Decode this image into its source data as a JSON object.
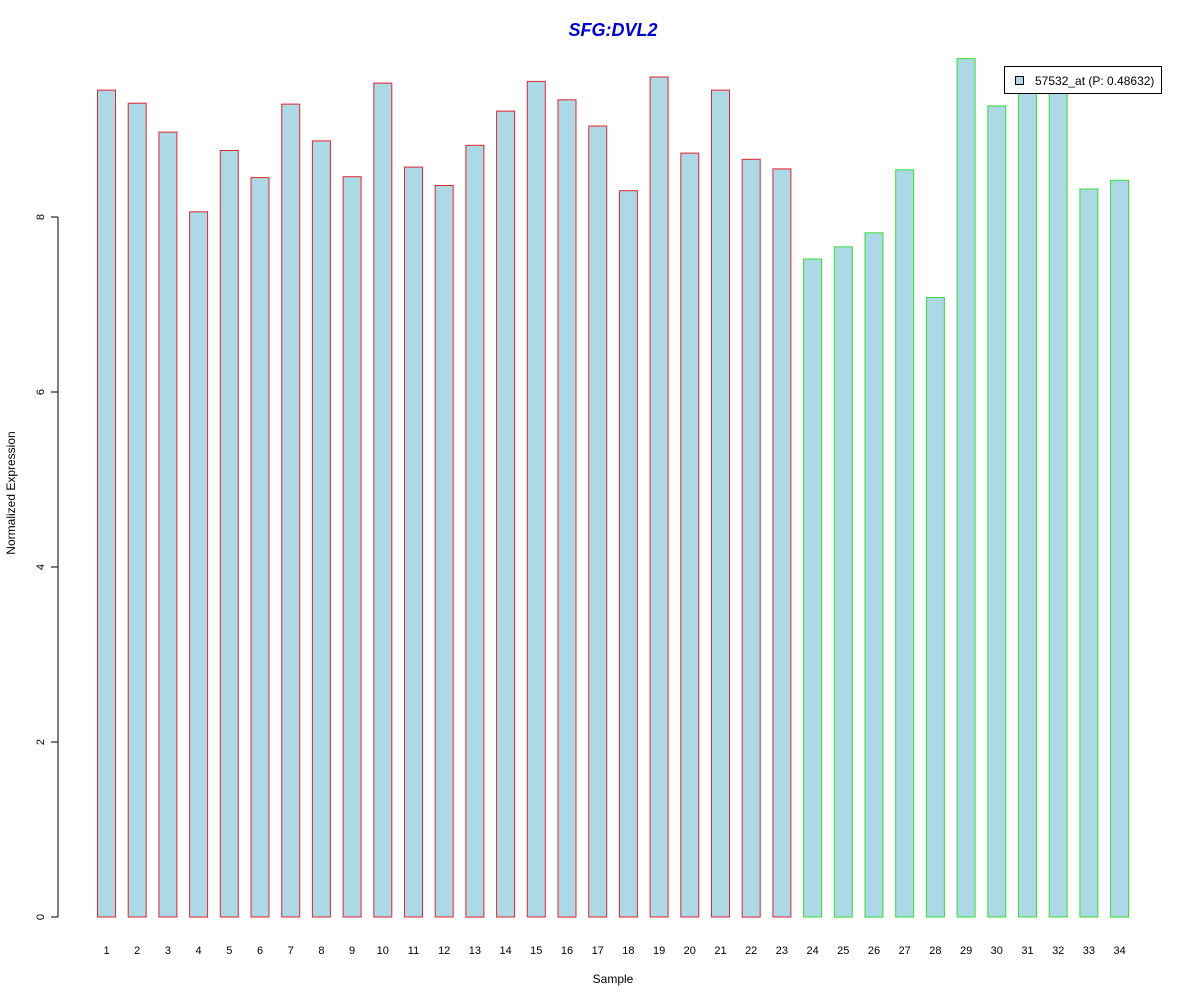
{
  "chart_data": {
    "type": "bar",
    "title": "SFG:DVL2",
    "xlabel": "Sample",
    "ylabel": "Normalized Expression",
    "categories": [
      "1",
      "2",
      "3",
      "4",
      "5",
      "6",
      "7",
      "8",
      "9",
      "10",
      "11",
      "12",
      "13",
      "14",
      "15",
      "16",
      "17",
      "18",
      "19",
      "20",
      "21",
      "22",
      "23",
      "24",
      "25",
      "26",
      "27",
      "28",
      "29",
      "30",
      "31",
      "32",
      "33",
      "34"
    ],
    "series": [
      {
        "name": "57532_at (P: 0.48632)",
        "values": [
          9.45,
          9.3,
          8.97,
          8.06,
          8.76,
          8.45,
          9.29,
          8.87,
          8.46,
          9.53,
          8.57,
          8.36,
          8.82,
          9.21,
          9.55,
          9.34,
          9.04,
          8.3,
          9.6,
          8.73,
          9.45,
          8.66,
          8.55,
          7.52,
          7.66,
          7.82,
          8.54,
          7.08,
          9.81,
          9.27,
          9.43,
          9.45,
          8.32,
          8.42
        ]
      }
    ],
    "groups": [
      {
        "range": [
          1,
          23
        ],
        "border_color": "#e0262e"
      },
      {
        "range": [
          24,
          34
        ],
        "border_color": "#33e033"
      }
    ],
    "bar_fill": "#add8e6",
    "yticks": [
      "0",
      "2",
      "4",
      "6",
      "8"
    ],
    "ylim": [
      0,
      9.81
    ],
    "legend_position": "top-right",
    "grid": false
  }
}
